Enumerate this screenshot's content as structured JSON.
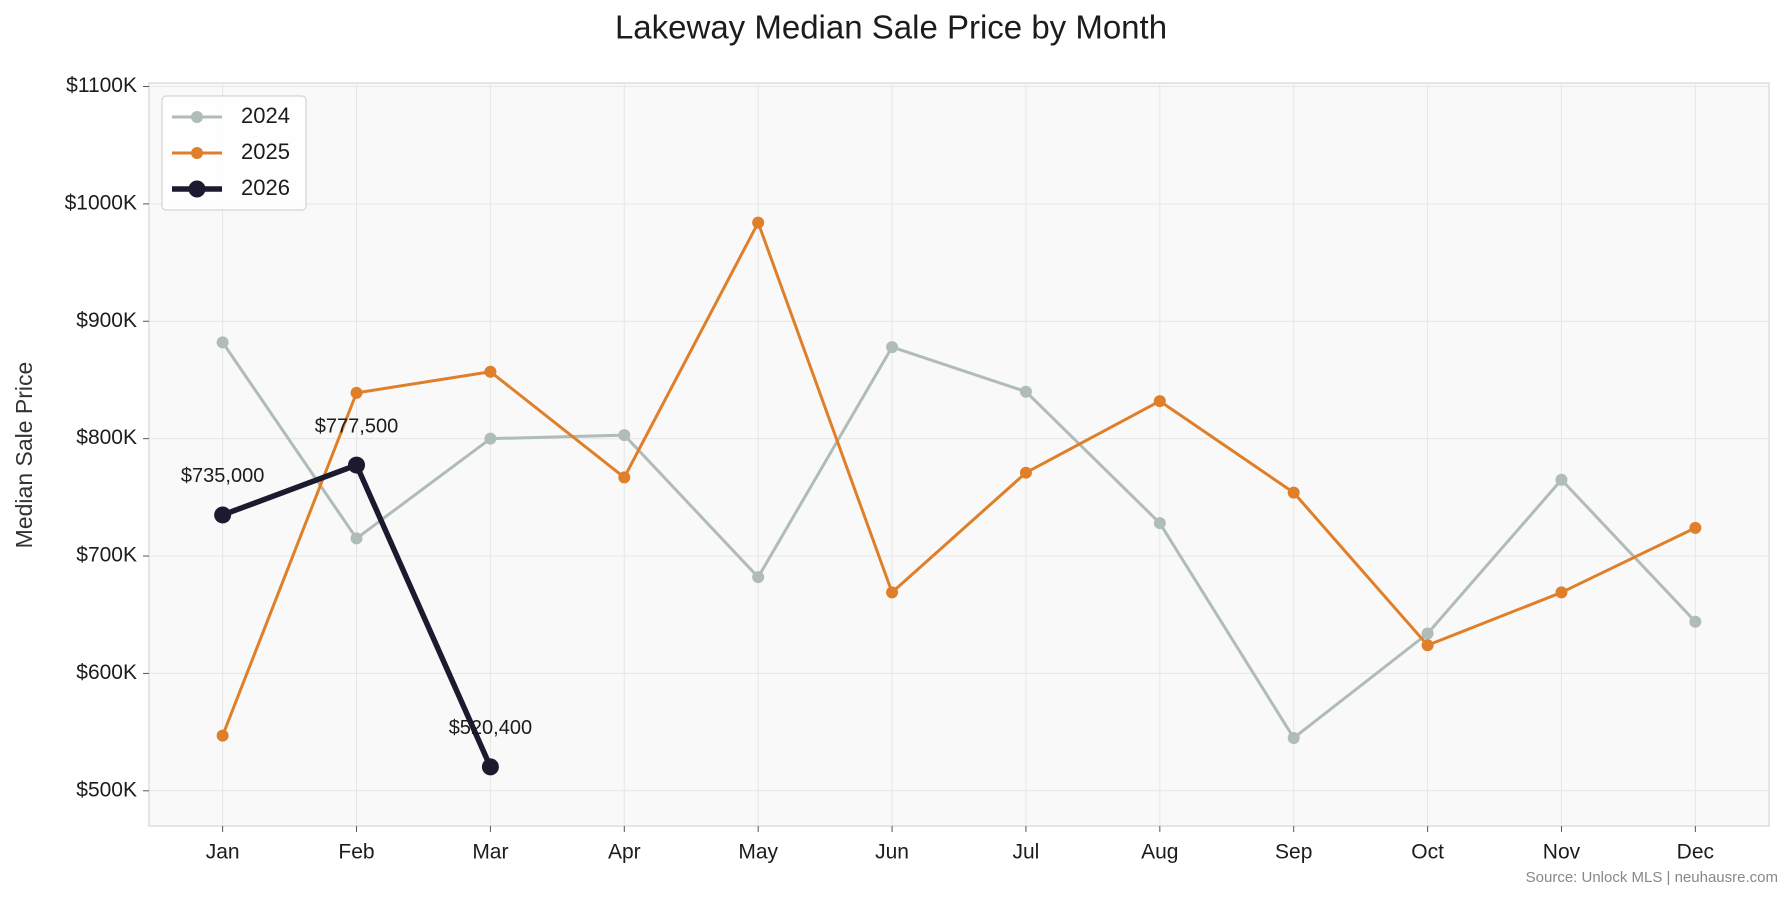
{
  "chart_data": {
    "type": "line",
    "title": "Lakeway Median Sale Price by Month",
    "y_label": "Median Sale Price",
    "source": "Source: Unlock MLS | neuhausre.com",
    "categories": [
      "Jan",
      "Feb",
      "Mar",
      "Apr",
      "May",
      "Jun",
      "Jul",
      "Aug",
      "Sep",
      "Oct",
      "Nov",
      "Dec"
    ],
    "series": [
      {
        "name": "2024",
        "color": "#b0bcb8",
        "values": [
          882000,
          715000,
          800000,
          803000,
          682000,
          878000,
          840000,
          728000,
          545000,
          634000,
          765000,
          644000
        ]
      },
      {
        "name": "2025",
        "color": "#e07f2a",
        "values": [
          547000,
          839000,
          857000,
          767000,
          984000,
          669000,
          771000,
          832000,
          754000,
          624000,
          669000,
          724000
        ]
      },
      {
        "name": "2026",
        "color": "#1c1a2e",
        "values": [
          735000,
          777500,
          520400,
          null,
          null,
          null,
          null,
          null,
          null,
          null,
          null,
          null
        ],
        "value_labels": [
          "$735,000",
          "$777,500",
          "$520,400",
          null,
          null,
          null,
          null,
          null,
          null,
          null,
          null,
          null
        ]
      }
    ],
    "ylim": [
      470000,
      1103000
    ],
    "yticks": [
      {
        "value": 500000,
        "label": "$500K"
      },
      {
        "value": 600000,
        "label": "$600K"
      },
      {
        "value": 700000,
        "label": "$700K"
      },
      {
        "value": 800000,
        "label": "$800K"
      },
      {
        "value": 900000,
        "label": "$900K"
      },
      {
        "value": 1000000,
        "label": "$1000K"
      },
      {
        "value": 1100000,
        "label": "$1100K"
      }
    ],
    "grid": true,
    "legend": "upper left"
  }
}
